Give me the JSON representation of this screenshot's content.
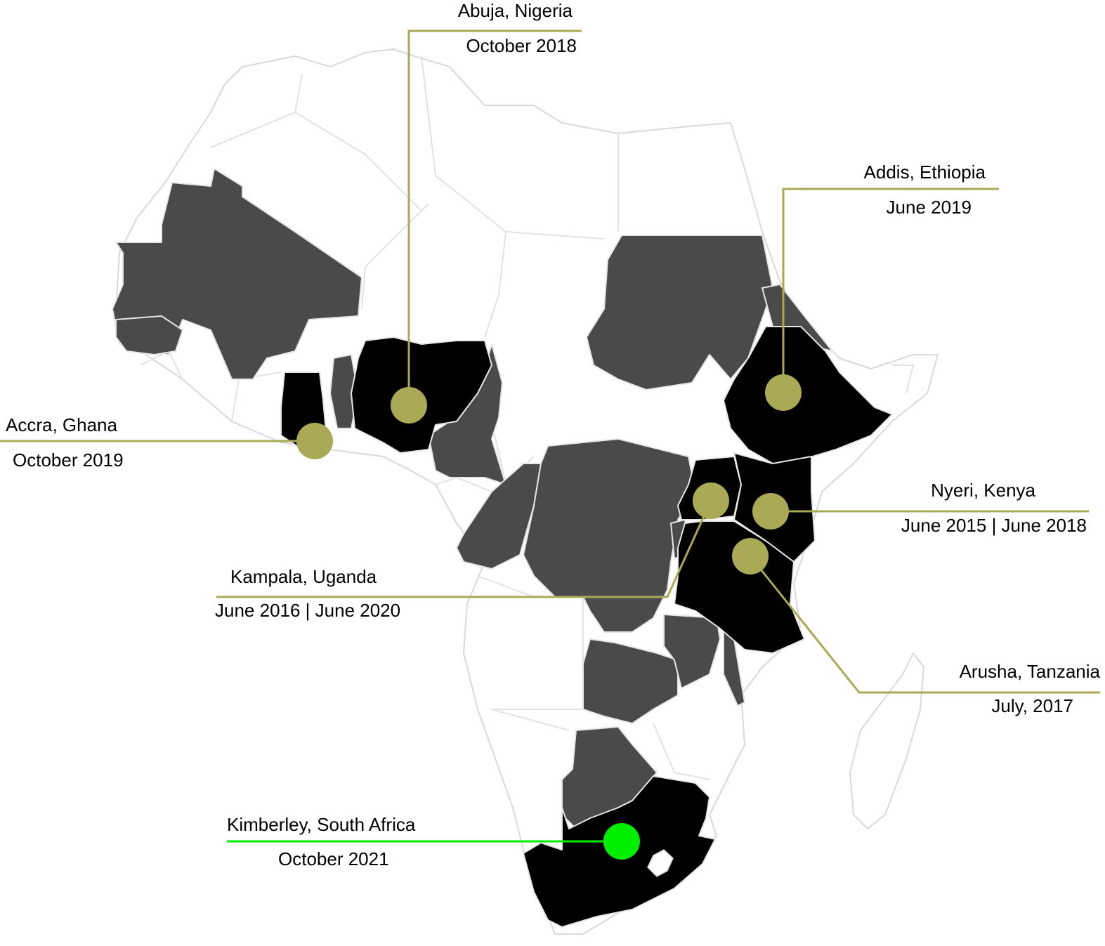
{
  "colors": {
    "background": "#ffffff",
    "land": "#ffffff",
    "border": "#d9d9d9",
    "region": "#4a4a4a",
    "highlight": "#000000",
    "marker": "#a9a956",
    "marker_current": "#00ee00",
    "text": "#000000"
  },
  "locations": [
    {
      "id": "abuja",
      "city": "Abuja, Nigeria",
      "date": "October 2018",
      "color": "#a9a956"
    },
    {
      "id": "addis",
      "city": "Addis, Ethiopia",
      "date": "June 2019",
      "color": "#a9a956"
    },
    {
      "id": "accra",
      "city": "Accra, Ghana",
      "date": "October 2019",
      "color": "#a9a956"
    },
    {
      "id": "nyeri",
      "city": "Nyeri, Kenya",
      "date": "June 2015 | June 2018",
      "color": "#a9a956"
    },
    {
      "id": "kampala",
      "city": "Kampala, Uganda",
      "date": "June 2016 | June 2020",
      "color": "#a9a956"
    },
    {
      "id": "arusha",
      "city": "Arusha, Tanzania",
      "date": "July, 2017",
      "color": "#a9a956"
    },
    {
      "id": "kimberley",
      "city": "Kimberley, South Africa",
      "date": "October 2021",
      "color": "#00ee00"
    }
  ]
}
